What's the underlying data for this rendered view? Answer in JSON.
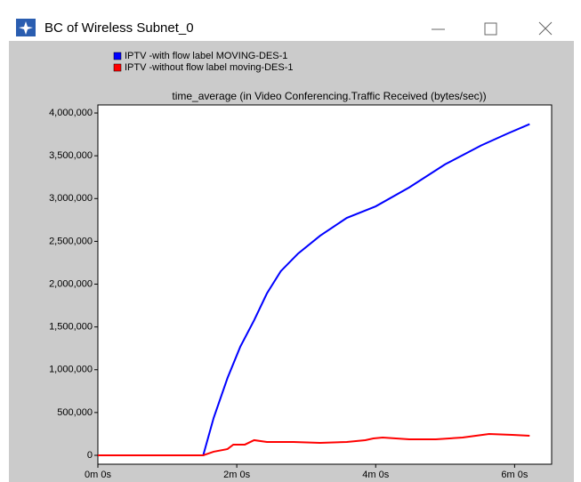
{
  "window_title": "BC  of Wireless Subnet_0",
  "chart_data": {
    "type": "line",
    "title": "time_average (in Video Conferencing.Traffic Received (bytes/sec))",
    "legend": "top-left",
    "xlim": [
      0,
      392
    ],
    "ylim": [
      -104000,
      4094000
    ],
    "xticks": [
      {
        "value": 0,
        "label": "0m 0s"
      },
      {
        "value": 120,
        "label": "2m 0s"
      },
      {
        "value": 240,
        "label": "4m 0s"
      },
      {
        "value": 360,
        "label": "6m 0s"
      }
    ],
    "yticks": [
      0,
      {
        "value": 500000,
        "label": "500,000"
      },
      {
        "value": 1000000,
        "label": "1,000,000"
      },
      {
        "value": 1500000,
        "label": "1,500,000"
      },
      {
        "value": 2000000,
        "label": "2,000,000"
      },
      {
        "value": 2500000,
        "label": "2,500,000"
      },
      {
        "value": 3000000,
        "label": "3,000,000"
      },
      {
        "value": 3500000,
        "label": "3,500,000"
      },
      {
        "value": 4000000,
        "label": "4,000,000"
      }
    ],
    "series": [
      {
        "name": "IPTV -with flow label MOVING-DES-1",
        "color": "#0000ff",
        "x": [
          0,
          91,
          100,
          112,
          123,
          135,
          146,
          158,
          173,
          192,
          215,
          240,
          269,
          300,
          331,
          354,
          373
        ],
        "values": [
          0,
          0,
          436000,
          904000,
          1268000,
          1579000,
          1891000,
          2151000,
          2358000,
          2566000,
          2774000,
          2909000,
          3130000,
          3400000,
          3620000,
          3760000,
          3870000
        ]
      },
      {
        "name": "IPTV -without flow label moving-DES-1",
        "color": "#ff0000",
        "x": [
          0,
          91,
          100,
          112,
          117,
          127,
          135,
          146,
          169,
          192,
          215,
          231,
          238,
          246,
          269,
          292,
          315,
          338,
          358,
          373
        ],
        "values": [
          0,
          0,
          42000,
          73000,
          125000,
          125000,
          177000,
          156000,
          156000,
          145000,
          156000,
          177000,
          197000,
          208000,
          187000,
          187000,
          208000,
          249000,
          239000,
          229000
        ]
      }
    ]
  }
}
